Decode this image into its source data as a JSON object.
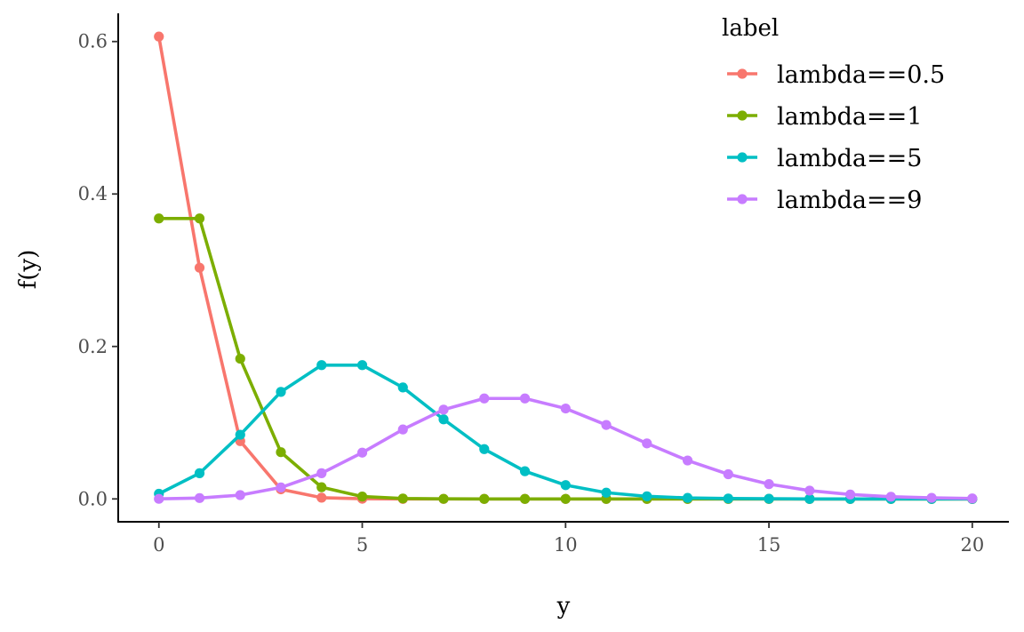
{
  "chart_data": {
    "type": "line",
    "xlabel": "y",
    "ylabel": "f(y)",
    "xlim": [
      -1,
      20.9
    ],
    "ylim": [
      -0.03,
      0.637
    ],
    "x_ticks": [
      0,
      5,
      10,
      15,
      20
    ],
    "y_ticks": [
      0.0,
      0.2,
      0.4,
      0.6
    ],
    "x_tick_labels": [
      "0",
      "5",
      "10",
      "15",
      "20"
    ],
    "y_tick_labels": [
      "0.0",
      "0.2",
      "0.4",
      "0.6"
    ],
    "grid": false,
    "legend": {
      "title": "label",
      "position": "top-right"
    },
    "x": [
      0,
      1,
      2,
      3,
      4,
      5,
      6,
      7,
      8,
      9,
      10,
      11,
      12,
      13,
      14,
      15,
      16,
      17,
      18,
      19,
      20
    ],
    "series": [
      {
        "name": "lambda==0.5",
        "color": "#F8766D",
        "values": [
          0.6065,
          0.3033,
          0.0758,
          0.0126,
          0.0016,
          0.0002,
          0.0,
          0.0,
          0.0,
          0.0,
          0.0,
          0.0,
          0.0,
          0.0,
          0.0,
          0.0,
          0.0,
          0.0,
          0.0,
          0.0,
          0.0
        ]
      },
      {
        "name": "lambda==1",
        "color": "#7CAE00",
        "values": [
          0.3679,
          0.3679,
          0.1839,
          0.0613,
          0.0153,
          0.0031,
          0.0005,
          0.0001,
          0.0,
          0.0,
          0.0,
          0.0,
          0.0,
          0.0,
          0.0,
          0.0,
          0.0,
          0.0,
          0.0,
          0.0,
          0.0
        ]
      },
      {
        "name": "lambda==5",
        "color": "#00BFC4",
        "values": [
          0.0067,
          0.0337,
          0.0842,
          0.1404,
          0.1755,
          0.1755,
          0.1462,
          0.1044,
          0.0653,
          0.0363,
          0.0181,
          0.0082,
          0.0034,
          0.0013,
          0.0005,
          0.0002,
          0.0,
          0.0,
          0.0,
          0.0,
          0.0
        ]
      },
      {
        "name": "lambda==9",
        "color": "#C77CFF",
        "values": [
          0.0001,
          0.0011,
          0.005,
          0.015,
          0.0337,
          0.0607,
          0.0911,
          0.1171,
          0.1318,
          0.1318,
          0.1186,
          0.097,
          0.0728,
          0.0504,
          0.0324,
          0.0194,
          0.0109,
          0.0058,
          0.0029,
          0.0014,
          0.0006
        ]
      }
    ]
  }
}
